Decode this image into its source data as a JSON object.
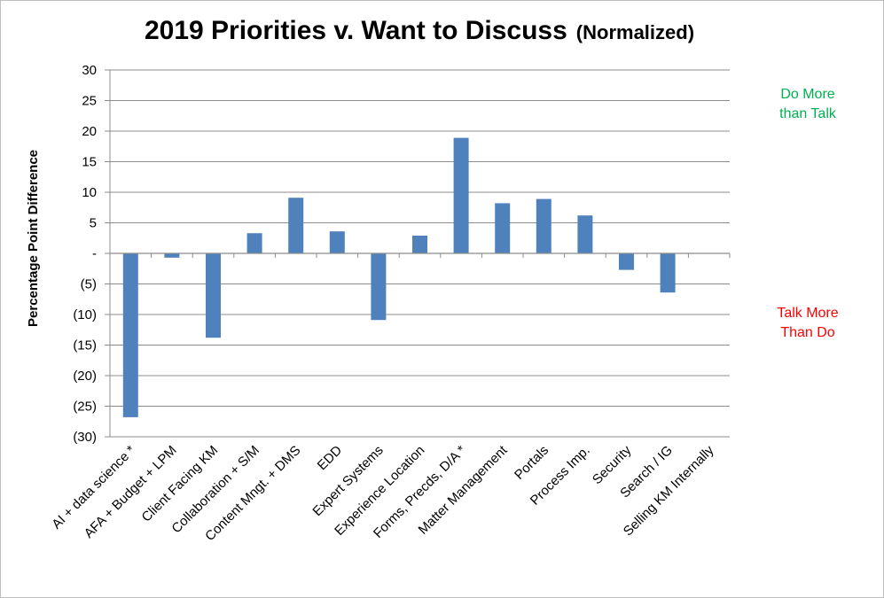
{
  "chart_data": {
    "type": "bar",
    "title": "2019 Priorities v. Want to Discuss",
    "subtitle": "(Normalized)",
    "ylabel": "Percentage Point Difference",
    "xlabel": "",
    "ylim": [
      -30,
      30
    ],
    "yticks": [
      30,
      25,
      20,
      15,
      10,
      5,
      0,
      -5,
      -10,
      -15,
      -20,
      -25,
      -30
    ],
    "ytick_labels": [
      "30",
      "25",
      "20",
      "15",
      "10",
      "5",
      "-",
      "(5)",
      "(10)",
      "(15)",
      "(20)",
      "(25)",
      "(30)"
    ],
    "grid": true,
    "categories": [
      "AI + data science *",
      "AFA + Budget + LPM",
      "Client Facing KM",
      "Collaboration + S/M",
      "Content Mngt. + DMS",
      "EDD",
      "Expert Systems",
      "Experience Location",
      "Forms, Precds, D/A *",
      "Matter Management",
      "Portals",
      "Process Imp.",
      "Security",
      "Search / IG",
      "Selling KM Internally"
    ],
    "values": [
      -26.8,
      -0.7,
      -13.8,
      3.3,
      9.1,
      3.6,
      -10.9,
      2.9,
      18.9,
      8.2,
      8.9,
      6.2,
      -2.7,
      -6.4,
      0
    ],
    "bar_color": "#4f81bd",
    "annotations": [
      {
        "text_lines": [
          "Do More",
          "than Talk"
        ],
        "color": "#00b050"
      },
      {
        "text_lines": [
          "Talk More",
          "Than Do"
        ],
        "color": "#ff0000"
      }
    ]
  }
}
